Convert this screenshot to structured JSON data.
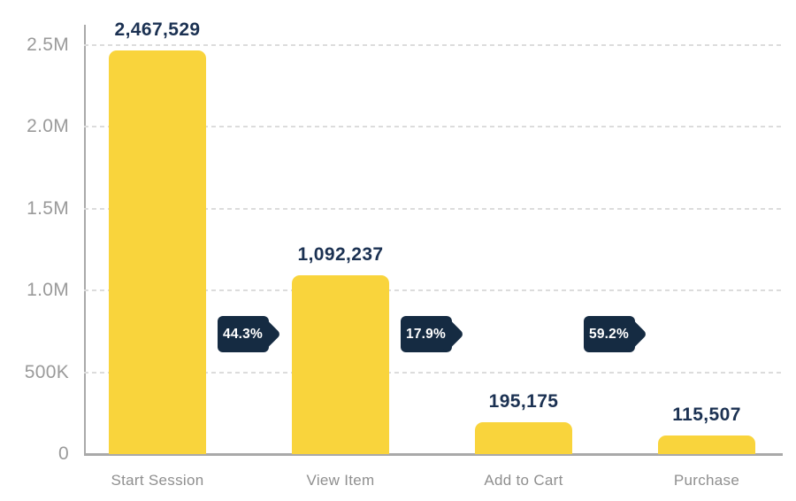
{
  "chart_data": {
    "type": "bar",
    "subtype": "funnel",
    "title": "",
    "xlabel": "",
    "ylabel": "",
    "categories": [
      "Start Session",
      "View Item",
      "Add to Cart",
      "Purchase"
    ],
    "values": [
      2467529,
      1092237,
      195175,
      115507
    ],
    "value_labels": [
      "2,467,529",
      "1,092,237",
      "195,175",
      "115,507"
    ],
    "conversion_badges": [
      "44.3%",
      "17.9%",
      "59.2%"
    ],
    "yticks": [
      {
        "value": 2500000,
        "label": "2.5M"
      },
      {
        "value": 2000000,
        "label": "2.0M"
      },
      {
        "value": 1500000,
        "label": "1.5M"
      },
      {
        "value": 1000000,
        "label": "1.0M"
      },
      {
        "value": 500000,
        "label": "500K"
      },
      {
        "value": 0,
        "label": "0"
      }
    ],
    "ylim": [
      0,
      2500000
    ],
    "grid": "horizontal-dashed",
    "legend": "none",
    "colors": {
      "bar": "#f9d43c",
      "badge_bg": "#152b42",
      "badge_text": "#ffffff",
      "value_label": "#1b3152",
      "axis_label": "#9a9a9a",
      "category_label": "#8f8f8f",
      "gridline": "#dcdcdc",
      "axis_line": "#a9a9a9",
      "background": "#ffffff"
    }
  }
}
